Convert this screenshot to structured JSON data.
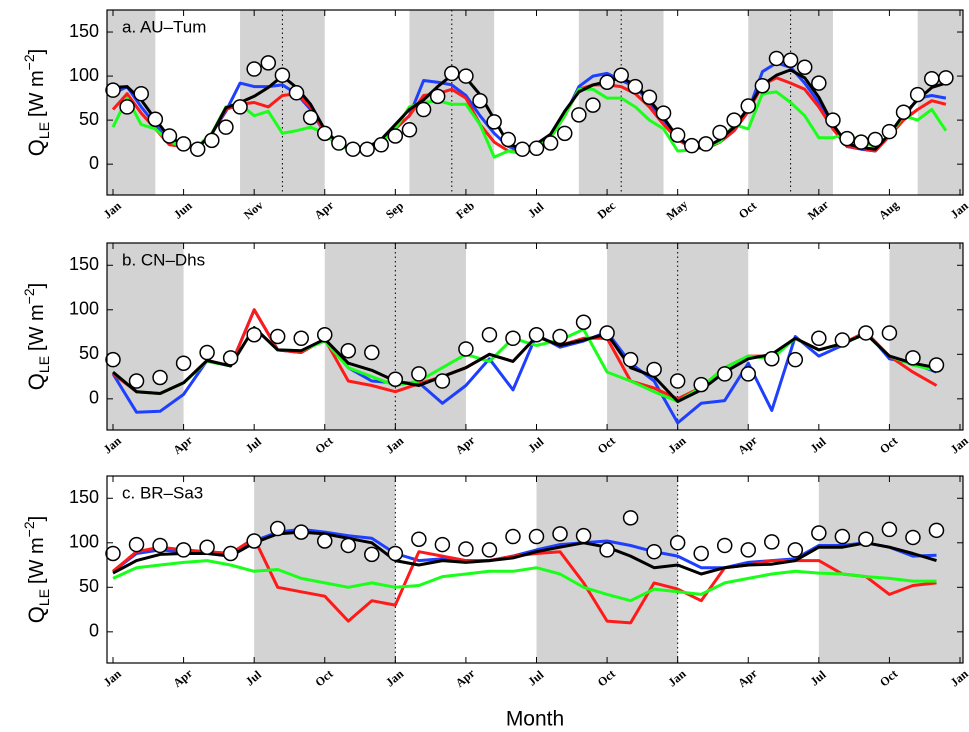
{
  "chart_data": [
    {
      "type": "line",
      "title": "a. AU–Tum",
      "ylabel": {
        "symbol": "Q",
        "subscript": "LE",
        "unit": "[W m",
        "superscript": "−2",
        "close": "]"
      },
      "categories": [
        "Jan",
        null,
        null,
        null,
        null,
        "Jun",
        null,
        null,
        null,
        null,
        "Nov",
        null,
        null,
        null,
        null,
        "Apr",
        null,
        null,
        null,
        null,
        "Sep",
        null,
        null,
        null,
        null,
        "Feb",
        null,
        null,
        null,
        null,
        "Jul",
        null,
        null,
        null,
        null,
        "Dec",
        null,
        null,
        null,
        null,
        "May",
        null,
        null,
        null,
        null,
        "Oct",
        null,
        null,
        null,
        null,
        "Mar",
        null,
        null,
        null,
        null,
        "Aug",
        null,
        null,
        null,
        null,
        "Jan"
      ],
      "ylim": [
        -35,
        175
      ],
      "yticks": [
        0,
        50,
        100,
        150
      ],
      "shaded": [
        [
          -0.5,
          3
        ],
        [
          9,
          15
        ],
        [
          21,
          27
        ],
        [
          33,
          39
        ],
        [
          45,
          51
        ],
        [
          57,
          60.5
        ]
      ],
      "year_lines": [
        12,
        24,
        36,
        48
      ],
      "series": [
        {
          "color": "#1f3fff",
          "values": [
            80,
            88,
            65,
            45,
            25,
            20,
            20,
            35,
            60,
            92,
            88,
            88,
            90,
            80,
            62,
            35,
            20,
            17,
            18,
            25,
            40,
            55,
            95,
            93,
            90,
            78,
            55,
            35,
            20,
            15,
            18,
            30,
            55,
            88,
            100,
            103,
            95,
            88,
            70,
            50,
            30,
            20,
            18,
            25,
            38,
            60,
            105,
            115,
            110,
            92,
            70,
            40,
            20,
            17,
            15,
            32,
            52,
            75,
            78,
            75,
            null
          ]
        },
        {
          "color": "#ff1a1a",
          "values": [
            62,
            80,
            58,
            40,
            22,
            20,
            20,
            35,
            62,
            68,
            70,
            65,
            78,
            80,
            65,
            35,
            20,
            17,
            18,
            25,
            40,
            55,
            78,
            80,
            85,
            75,
            45,
            25,
            15,
            15,
            18,
            30,
            55,
            85,
            90,
            90,
            88,
            80,
            65,
            45,
            28,
            18,
            18,
            25,
            38,
            60,
            90,
            98,
            92,
            85,
            65,
            40,
            20,
            18,
            15,
            32,
            50,
            62,
            72,
            68,
            null
          ]
        },
        {
          "color": "#1aff1a",
          "values": [
            42,
            75,
            45,
            40,
            25,
            20,
            20,
            35,
            65,
            68,
            55,
            60,
            35,
            38,
            42,
            35,
            20,
            17,
            18,
            25,
            40,
            65,
            70,
            72,
            68,
            68,
            45,
            8,
            15,
            12,
            18,
            30,
            55,
            85,
            85,
            75,
            75,
            65,
            50,
            40,
            15,
            16,
            20,
            25,
            45,
            40,
            80,
            82,
            70,
            55,
            30,
            30,
            35,
            25,
            20,
            32,
            55,
            50,
            62,
            38,
            null
          ]
        },
        {
          "color": "#000000",
          "values": [
            87,
            88,
            73,
            51,
            30,
            23,
            19,
            34,
            64,
            70,
            77,
            87,
            100,
            87,
            68,
            39,
            23,
            17,
            19,
            28,
            45,
            62,
            73,
            88,
            101,
            98,
            79,
            51,
            23,
            17,
            23,
            34,
            60,
            82,
            90,
            94,
            98,
            90,
            73,
            53,
            30,
            19,
            19,
            28,
            42,
            64,
            90,
            101,
            107,
            98,
            76,
            45,
            23,
            19,
            17,
            34,
            56,
            73,
            87,
            92,
            null
          ]
        },
        {
          "color": "#ffffff",
          "marker": "circle",
          "values": [
            84,
            65,
            80,
            51,
            32,
            23,
            17,
            27,
            42,
            65,
            108,
            115,
            101,
            81,
            53,
            35,
            24,
            17,
            17,
            22,
            32,
            39,
            62,
            77,
            103,
            100,
            72,
            48,
            28,
            17,
            18,
            24,
            35,
            56,
            67,
            93,
            101,
            88,
            76,
            58,
            33,
            21,
            23,
            36,
            50,
            66,
            89,
            120,
            118,
            110,
            92,
            50,
            29,
            25,
            28,
            37,
            59,
            79,
            97,
            98,
            null
          ]
        }
      ]
    },
    {
      "type": "line",
      "title": "b. CN–Dhs",
      "ylabel": {
        "symbol": "Q",
        "subscript": "LE",
        "unit": "[W m",
        "superscript": "−2",
        "close": "]"
      },
      "categories": [
        "Jan",
        null,
        null,
        "Apr",
        null,
        null,
        "Jul",
        null,
        null,
        "Oct",
        null,
        null,
        "Jan",
        null,
        null,
        "Apr",
        null,
        null,
        "Jul",
        null,
        null,
        "Oct",
        null,
        null,
        "Jan",
        null,
        null,
        "Apr",
        null,
        null,
        "Jul",
        null,
        null,
        "Oct",
        null,
        null,
        "Jan"
      ],
      "ylim": [
        -35,
        175
      ],
      "yticks": [
        0,
        50,
        100,
        150
      ],
      "shaded": [
        [
          -0.5,
          3
        ],
        [
          9,
          15
        ],
        [
          21,
          27
        ],
        [
          33,
          36.5
        ]
      ],
      "year_lines": [
        12,
        24
      ],
      "series": [
        {
          "color": "#1f3fff",
          "values": [
            28,
            -15,
            -14,
            5,
            43,
            37,
            100,
            55,
            52,
            67,
            35,
            20,
            18,
            18,
            -5,
            15,
            45,
            10,
            72,
            58,
            65,
            75,
            40,
            20,
            -27,
            -5,
            -2,
            40,
            -13,
            70,
            48,
            60,
            76,
            45,
            40,
            30,
            null
          ]
        },
        {
          "color": "#ff1a1a",
          "values": [
            28,
            8,
            6,
            18,
            43,
            37,
            100,
            55,
            52,
            67,
            20,
            15,
            8,
            17,
            25,
            35,
            50,
            42,
            70,
            60,
            68,
            68,
            20,
            12,
            0,
            13,
            35,
            48,
            48,
            68,
            55,
            62,
            75,
            48,
            30,
            15,
            null
          ]
        },
        {
          "color": "#1aff1a",
          "values": [
            30,
            8,
            6,
            18,
            42,
            37,
            80,
            55,
            54,
            65,
            35,
            25,
            15,
            20,
            35,
            50,
            42,
            68,
            60,
            66,
            78,
            30,
            20,
            8,
            -3,
            13,
            35,
            48,
            45,
            68,
            55,
            62,
            73,
            48,
            38,
            32,
            null
          ]
        },
        {
          "color": "#000000",
          "values": [
            30,
            8,
            6,
            18,
            43,
            37,
            80,
            55,
            54,
            67,
            40,
            32,
            20,
            15,
            25,
            35,
            50,
            42,
            70,
            60,
            66,
            73,
            35,
            25,
            -3,
            10,
            30,
            45,
            50,
            68,
            55,
            62,
            73,
            48,
            40,
            35,
            null
          ]
        },
        {
          "color": "#ffffff",
          "marker": "circle",
          "values": [
            44,
            20,
            24,
            40,
            52,
            46,
            72,
            70,
            68,
            72,
            54,
            52,
            22,
            28,
            20,
            56,
            72,
            68,
            72,
            70,
            86,
            74,
            44,
            33,
            20,
            16,
            28,
            28,
            45,
            44,
            68,
            66,
            74,
            74,
            46,
            38,
            null
          ]
        }
      ]
    },
    {
      "type": "line",
      "title": "c. BR–Sa3",
      "xlabel": "Month",
      "ylabel": {
        "symbol": "Q",
        "subscript": "LE",
        "unit": "[W m",
        "superscript": "−2",
        "close": "]"
      },
      "categories": [
        "Jan",
        null,
        null,
        "Apr",
        null,
        null,
        "Jul",
        null,
        null,
        "Oct",
        null,
        null,
        "Jan",
        null,
        null,
        "Apr",
        null,
        null,
        "Jul",
        null,
        null,
        "Oct",
        null,
        null,
        "Jan",
        null,
        null,
        "Apr",
        null,
        null,
        "Jul",
        null,
        null,
        "Oct",
        null,
        null,
        "Jan"
      ],
      "ylim": [
        -35,
        175
      ],
      "yticks": [
        0,
        50,
        100,
        150
      ],
      "shaded": [
        [
          6,
          12
        ],
        [
          18,
          24
        ],
        [
          30,
          36.5
        ]
      ],
      "year_lines": [
        12,
        24
      ],
      "series": [
        {
          "color": "#1f3fff",
          "values": [
            68,
            88,
            92,
            90,
            90,
            88,
            102,
            112,
            115,
            112,
            108,
            105,
            88,
            80,
            82,
            80,
            80,
            85,
            92,
            98,
            100,
            102,
            97,
            90,
            85,
            72,
            72,
            78,
            80,
            82,
            97,
            97,
            100,
            95,
            85,
            86,
            null
          ]
        },
        {
          "color": "#ff1a1a",
          "values": [
            68,
            90,
            95,
            92,
            90,
            88,
            105,
            50,
            45,
            40,
            12,
            35,
            30,
            90,
            85,
            80,
            80,
            85,
            88,
            90,
            55,
            12,
            10,
            55,
            48,
            35,
            72,
            75,
            80,
            80,
            80,
            65,
            62,
            42,
            52,
            55,
            null
          ]
        },
        {
          "color": "#1aff1a",
          "values": [
            60,
            72,
            75,
            78,
            80,
            75,
            68,
            70,
            60,
            55,
            50,
            55,
            50,
            52,
            62,
            65,
            68,
            68,
            72,
            65,
            50,
            42,
            35,
            48,
            45,
            42,
            55,
            60,
            65,
            68,
            66,
            65,
            62,
            60,
            57,
            57,
            null
          ]
        },
        {
          "color": "#000000",
          "values": [
            66,
            80,
            87,
            88,
            88,
            85,
            100,
            110,
            112,
            110,
            105,
            100,
            80,
            75,
            80,
            78,
            80,
            83,
            90,
            95,
            100,
            95,
            85,
            72,
            75,
            65,
            72,
            75,
            76,
            80,
            95,
            95,
            100,
            95,
            88,
            80,
            null
          ]
        },
        {
          "color": "#ffffff",
          "marker": "circle",
          "values": [
            88,
            98,
            97,
            92,
            95,
            88,
            102,
            116,
            112,
            102,
            97,
            87,
            88,
            104,
            98,
            93,
            92,
            107,
            107,
            110,
            108,
            92,
            128,
            90,
            100,
            88,
            97,
            92,
            101,
            92,
            111,
            107,
            104,
            115,
            106,
            114,
            null
          ]
        }
      ]
    }
  ]
}
